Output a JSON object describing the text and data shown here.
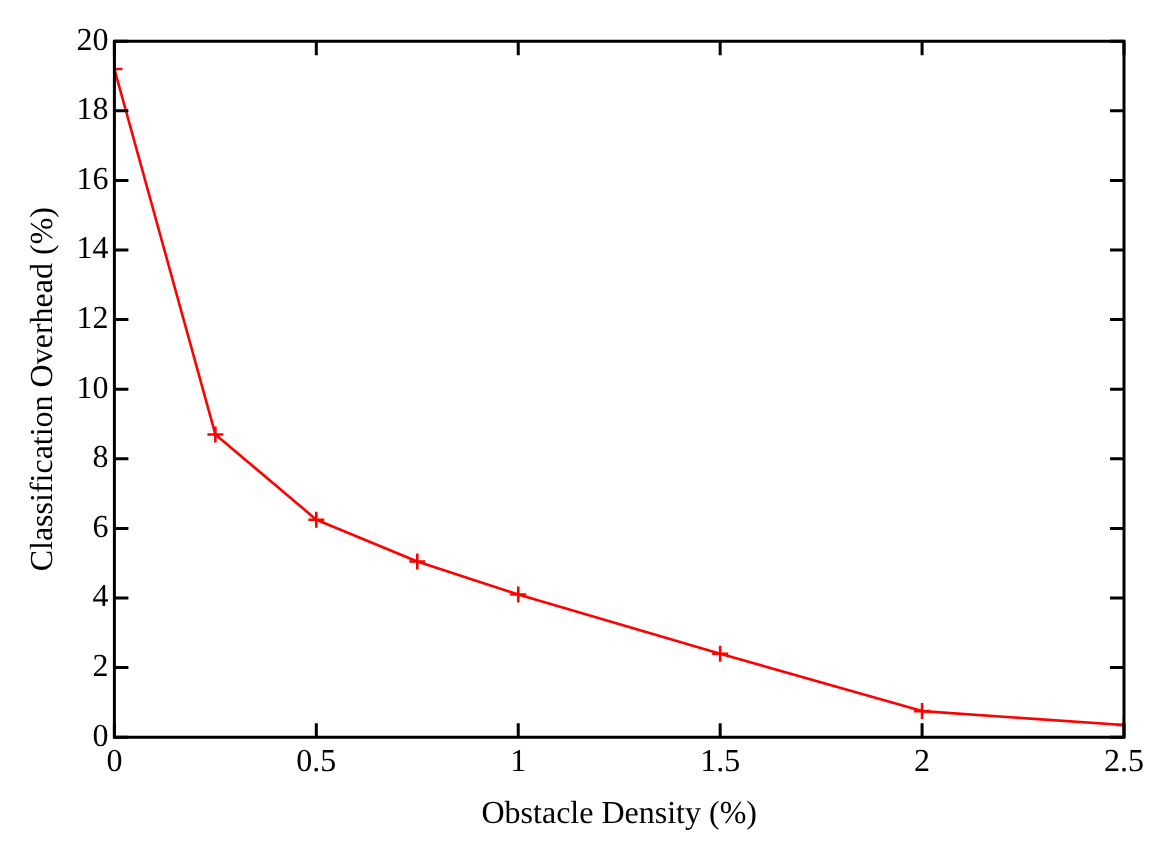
{
  "chart_data": {
    "type": "line",
    "xlabel": "Obstacle Density (%)",
    "ylabel": "Classification Overhead (%)",
    "x": [
      0,
      0.25,
      0.5,
      0.75,
      1,
      1.5,
      2,
      2.5
    ],
    "series": [
      {
        "color": "#ff0000",
        "values": [
          19.2,
          8.7,
          6.25,
          5.05,
          4.1,
          2.4,
          0.75,
          0.35
        ]
      }
    ],
    "xlim": [
      0,
      2.5
    ],
    "xticks": [
      0,
      0.5,
      1,
      1.5,
      2,
      2.5
    ],
    "ylim": [
      0,
      20
    ],
    "yticks": [
      0,
      2,
      4,
      6,
      8,
      10,
      12,
      14,
      16,
      18,
      20
    ],
    "grid": false,
    "legend": false,
    "marker": "cross",
    "line_style": "solid"
  }
}
